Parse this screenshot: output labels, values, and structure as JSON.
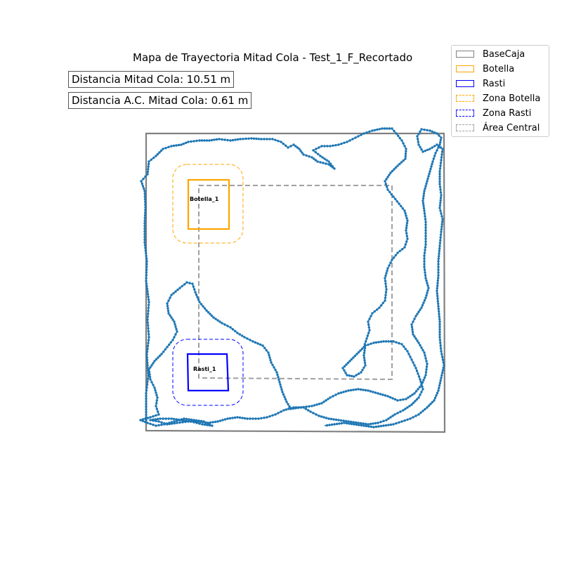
{
  "chart_data": {
    "type": "line",
    "title": "Mapa de Trayectoria Mitad Cola - Test_1_F_Recortado",
    "info": {
      "distance_label": "Distancia Mitad Cola: 10.51 m",
      "ac_distance_label": "Distancia A.C. Mitad Cola: 0.61 m"
    },
    "legend": [
      {
        "label": "BaseCaja",
        "color": "#808080",
        "style": "solid"
      },
      {
        "label": "Botella",
        "color": "#FFA500",
        "style": "solid"
      },
      {
        "label": "Rasti",
        "color": "#0000FF",
        "style": "solid"
      },
      {
        "label": "Zona Botella",
        "color": "#FFA500",
        "style": "dashed"
      },
      {
        "label": "Zona Rasti",
        "color": "#0000FF",
        "style": "dashed"
      },
      {
        "label": "Área Central",
        "color": "#A0A0A0",
        "style": "dashed"
      }
    ],
    "objects": [
      {
        "name": "Botella_1",
        "color": "#FFA500"
      },
      {
        "name": "Rasti_1",
        "color": "#0000FF"
      }
    ],
    "trajectory_color": "#1F77B4",
    "axes_visible": false,
    "grid": false,
    "legend_placement": "top-right"
  }
}
